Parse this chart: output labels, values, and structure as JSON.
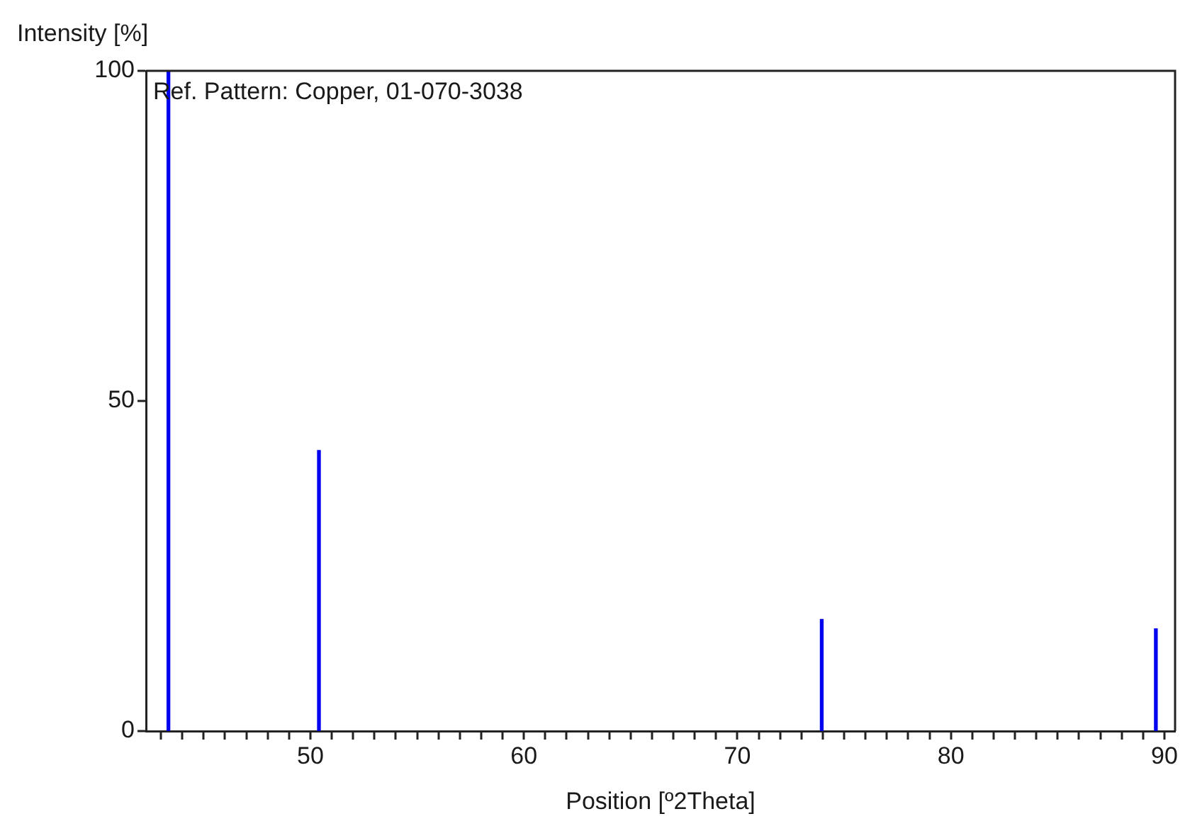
{
  "chart_data": {
    "type": "bar",
    "xlabel": "Position [º2Theta]",
    "ylabel": "Intensity [%]",
    "annotations": [
      "Ref. Pattern: Copper, 01-070-3038"
    ],
    "x": [
      43.35,
      50.4,
      73.95,
      89.6
    ],
    "values": [
      100,
      42.5,
      16.9,
      15.5
    ],
    "color": "#0000ee",
    "xlim": [
      42.3,
      90.5
    ],
    "xticks": [
      {
        "value": 43,
        "label": null
      },
      {
        "value": 44,
        "label": null
      },
      {
        "value": 45,
        "label": null
      },
      {
        "value": 46,
        "label": null
      },
      {
        "value": 47,
        "label": null
      },
      {
        "value": 48,
        "label": null
      },
      {
        "value": 49,
        "label": null
      },
      50,
      {
        "value": 51,
        "label": null
      },
      {
        "value": 52,
        "label": null
      },
      {
        "value": 53,
        "label": null
      },
      {
        "value": 54,
        "label": null
      },
      {
        "value": 55,
        "label": null
      },
      {
        "value": 56,
        "label": null
      },
      {
        "value": 57,
        "label": null
      },
      {
        "value": 58,
        "label": null
      },
      {
        "value": 59,
        "label": null
      },
      60,
      {
        "value": 61,
        "label": null
      },
      {
        "value": 62,
        "label": null
      },
      {
        "value": 63,
        "label": null
      },
      {
        "value": 64,
        "label": null
      },
      {
        "value": 65,
        "label": null
      },
      {
        "value": 66,
        "label": null
      },
      {
        "value": 67,
        "label": null
      },
      {
        "value": 68,
        "label": null
      },
      {
        "value": 69,
        "label": null
      },
      70,
      {
        "value": 71,
        "label": null
      },
      {
        "value": 72,
        "label": null
      },
      {
        "value": 73,
        "label": null
      },
      {
        "value": 74,
        "label": null
      },
      {
        "value": 75,
        "label": null
      },
      {
        "value": 76,
        "label": null
      },
      {
        "value": 77,
        "label": null
      },
      {
        "value": 78,
        "label": null
      },
      {
        "value": 79,
        "label": null
      },
      80,
      {
        "value": 81,
        "label": null
      },
      {
        "value": 82,
        "label": null
      },
      {
        "value": 83,
        "label": null
      },
      {
        "value": 84,
        "label": null
      },
      {
        "value": 85,
        "label": null
      },
      {
        "value": 86,
        "label": null
      },
      {
        "value": 87,
        "label": null
      },
      {
        "value": 88,
        "label": null
      },
      {
        "value": 89,
        "label": null
      },
      90
    ],
    "ylim": [
      0,
      100
    ],
    "yticks": [
      0,
      50,
      100
    ]
  }
}
